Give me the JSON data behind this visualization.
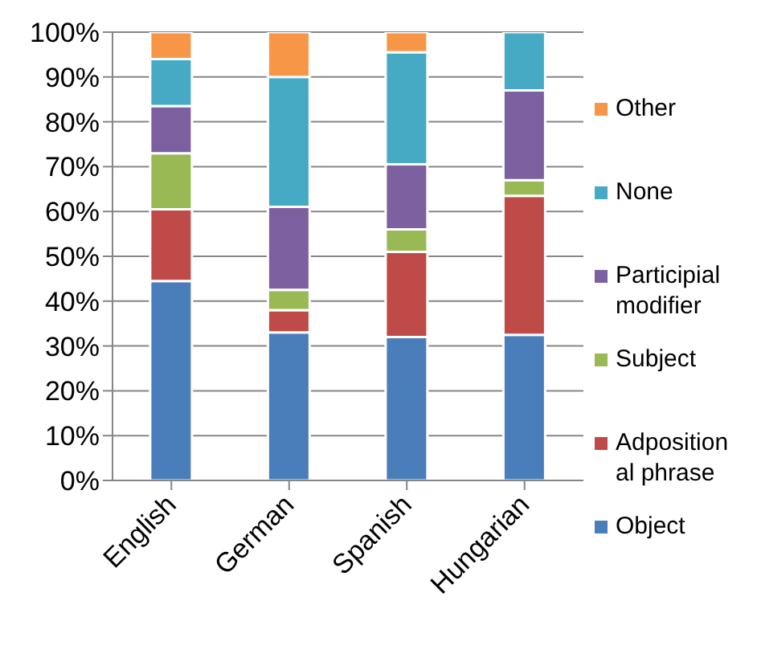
{
  "chart_data": {
    "type": "bar",
    "stacked": true,
    "categories": [
      "English",
      "German",
      "Spanish",
      "Hungarian"
    ],
    "series": [
      {
        "name": "Object",
        "color": "#4a7ebb",
        "values": [
          44.5,
          33,
          32,
          32.5
        ]
      },
      {
        "name": "Adpositional phrase",
        "color": "#be4b48",
        "values": [
          16,
          5,
          19,
          31
        ]
      },
      {
        "name": "Subject",
        "color": "#98b954",
        "values": [
          12.5,
          4.5,
          5,
          3.5
        ]
      },
      {
        "name": "Participial modifier",
        "color": "#7d60a0",
        "values": [
          10.5,
          18.5,
          14.5,
          20
        ]
      },
      {
        "name": "None",
        "color": "#46aac5",
        "values": [
          10.5,
          29,
          25,
          13
        ]
      },
      {
        "name": "Other",
        "color": "#f79646",
        "values": [
          6,
          10,
          4.5,
          0
        ]
      }
    ],
    "ylim": [
      0,
      100
    ],
    "yticks": [
      {
        "value": 0,
        "label": "0%"
      },
      {
        "value": 10,
        "label": "10%"
      },
      {
        "value": 20,
        "label": "20%"
      },
      {
        "value": 30,
        "label": "30%"
      },
      {
        "value": 40,
        "label": "40%"
      },
      {
        "value": 50,
        "label": "50%"
      },
      {
        "value": 60,
        "label": "60%"
      },
      {
        "value": 70,
        "label": "70%"
      },
      {
        "value": 80,
        "label": "80%"
      },
      {
        "value": 90,
        "label": "90%"
      },
      {
        "value": 100,
        "label": "100%"
      }
    ],
    "grid": "y",
    "legend": "right"
  }
}
